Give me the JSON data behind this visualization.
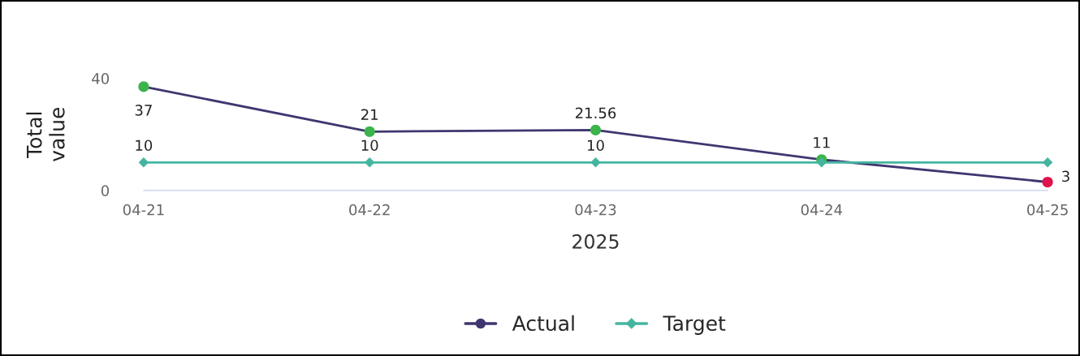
{
  "chart_data": {
    "type": "line",
    "xlabel": "2025",
    "ylabel": "Total\nvalue",
    "categories": [
      "04-21",
      "04-22",
      "04-23",
      "04-24",
      "04-25"
    ],
    "ylim": [
      0,
      40
    ],
    "yticks": [
      0,
      40
    ],
    "grid": false,
    "legend": "bottom",
    "series": [
      {
        "name": "Actual",
        "color": "#3f3670",
        "marker": "circle",
        "colors": [
          "#3cb44b",
          "#3cb44b",
          "#3cb44b",
          "#3cb44b",
          "#e0144c"
        ],
        "values": [
          37,
          21,
          21.56,
          11,
          3
        ],
        "value_labels": [
          "37",
          "21",
          "21.56",
          "11",
          "3"
        ]
      },
      {
        "name": "Target",
        "color": "#45b5a0",
        "marker": "diamond",
        "values": [
          10,
          10,
          10,
          10,
          10
        ],
        "value_labels": [
          "10",
          "10",
          "10",
          null,
          null
        ]
      }
    ]
  }
}
